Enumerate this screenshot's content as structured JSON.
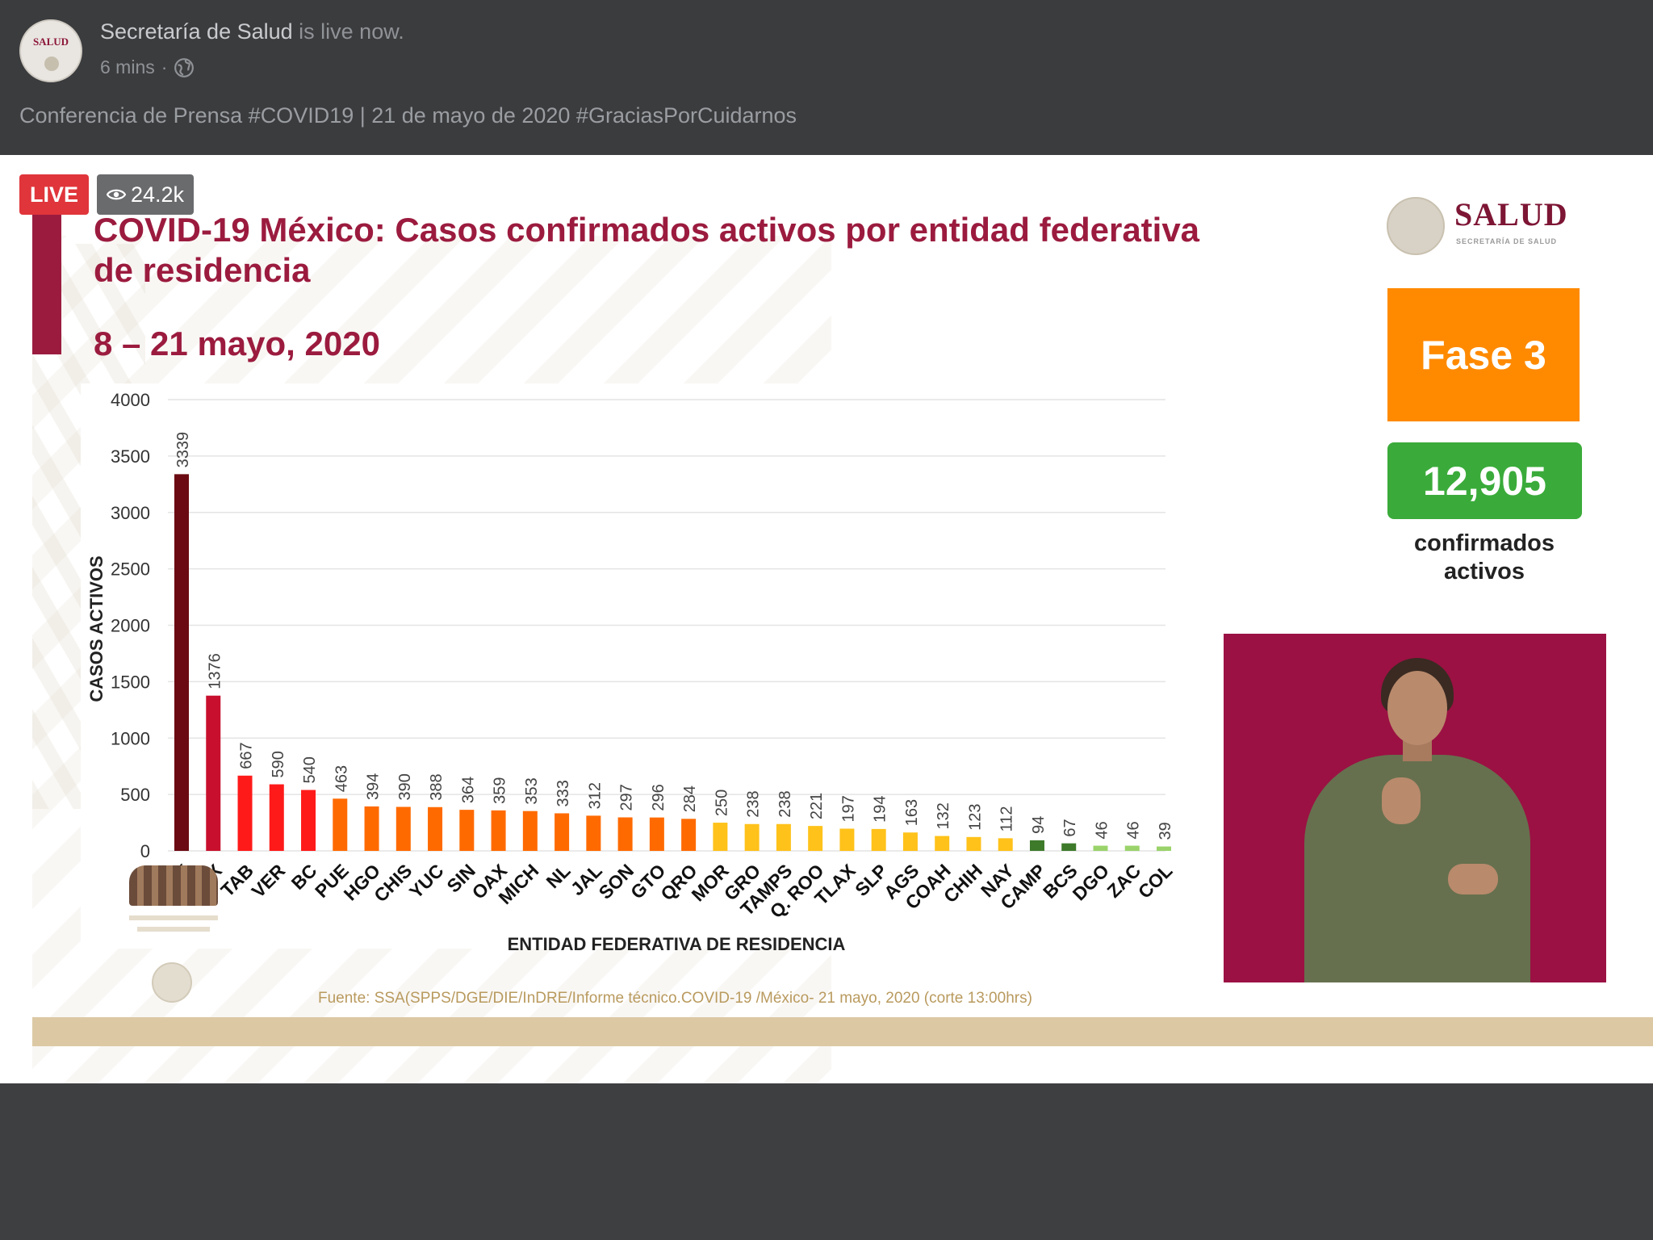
{
  "post": {
    "page_name": "Secretaría de Salud",
    "status": "is live now.",
    "time": "6 mins",
    "text": "Conferencia de Prensa #COVID19 | 21 de mayo de 2020 #GraciasPorCuidarnos",
    "avatar_text": "SALUD"
  },
  "video": {
    "live_label": "LIVE",
    "viewers": "24.2k"
  },
  "slide": {
    "title": "COVID-19 México: Casos confirmados activos por entidad federativa de residencia",
    "subtitle": "8 – 21 mayo, 2020",
    "logo_word": "SALUD",
    "logo_sub": "SECRETARÍA DE SALUD",
    "phase": "Fase 3",
    "active_count": "12,905",
    "active_label": "confirmados activos",
    "source": "Fuente: SSA(SPPS/DGE/DIE/InDRE/Informe técnico.COVID-19 /México- 21 mayo, 2020 (corte 13:00hrs)"
  },
  "colors": {
    "brand": "#9b1b3e",
    "phase": "#ff8a00",
    "count": "#3aab3a"
  },
  "chart_data": {
    "type": "bar",
    "xlabel": "ENTIDAD FEDERATIVA DE  RESIDENCIA",
    "ylabel": "CASOS ACTIVOS",
    "ylim": [
      0,
      4000
    ],
    "yticks": [
      0,
      500,
      1000,
      1500,
      2000,
      2500,
      3000,
      3500,
      4000
    ],
    "grid": true,
    "categories": [
      "CDMX",
      "MEX",
      "TAB",
      "VER",
      "BC",
      "PUE",
      "HGO",
      "CHIS",
      "YUC",
      "SIN",
      "OAX",
      "MICH",
      "NL",
      "JAL",
      "SON",
      "GTO",
      "QRO",
      "MOR",
      "GRO",
      "TAMPS",
      "Q. ROO",
      "TLAX",
      "SLP",
      "AGS",
      "COAH",
      "CHIH",
      "NAY",
      "CAMP",
      "BCS",
      "DGO",
      "ZAC",
      "COL"
    ],
    "visible_labels": [
      "X",
      "EX",
      "TAB",
      "VER",
      "BC",
      "PUE",
      "HGO",
      "CHIS",
      "YUC",
      "SIN",
      "OAX",
      "MICH",
      "NL",
      "JAL",
      "SON",
      "GTO",
      "QRO",
      "MOR",
      "GRO",
      "TAMPS",
      "Q. ROO",
      "TLAX",
      "SLP",
      "AGS",
      "COAH",
      "CHIH",
      "NAY",
      "CAMP",
      "BCS",
      "DGO",
      "ZAC",
      "COL"
    ],
    "values": [
      3339,
      1376,
      667,
      590,
      540,
      463,
      394,
      390,
      388,
      364,
      359,
      353,
      333,
      312,
      297,
      296,
      284,
      250,
      238,
      238,
      221,
      197,
      194,
      163,
      132,
      123,
      112,
      94,
      67,
      46,
      46,
      39
    ],
    "bar_colors": [
      "#6b0a12",
      "#c8102e",
      "#ff1a1a",
      "#ff1a1a",
      "#ff1a1a",
      "#ff6a00",
      "#ff6a00",
      "#ff6a00",
      "#ff6a00",
      "#ff6a00",
      "#ff6a00",
      "#ff6a00",
      "#ff6a00",
      "#ff6a00",
      "#ff6a00",
      "#ff6a00",
      "#ff6a00",
      "#ffc21a",
      "#ffc21a",
      "#ffc21a",
      "#ffc21a",
      "#ffc21a",
      "#ffc21a",
      "#ffc21a",
      "#ffc21a",
      "#ffc21a",
      "#ffc21a",
      "#3d7a2a",
      "#3d7a2a",
      "#9ad36a",
      "#9ad36a",
      "#9ad36a"
    ]
  }
}
